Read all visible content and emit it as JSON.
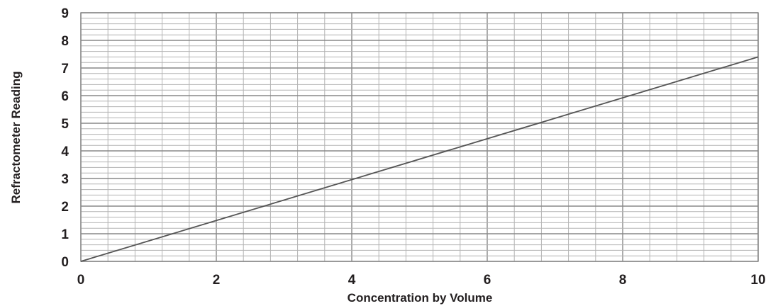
{
  "chart_data": {
    "type": "line",
    "title": "",
    "xlabel": "Concentration by Volume",
    "ylabel": "Refractometer Reading",
    "xlim": [
      0,
      10
    ],
    "ylim": [
      0,
      9
    ],
    "x_ticks": [
      "0",
      "2",
      "4",
      "6",
      "8",
      "10"
    ],
    "y_ticks": [
      "0",
      "1",
      "2",
      "3",
      "4",
      "5",
      "6",
      "7",
      "8",
      "9"
    ],
    "grid": {
      "visible": true,
      "x_minor_step": 0.4,
      "y_minor_step": 0.2
    },
    "series": [
      {
        "x": [
          0,
          10
        ],
        "y": [
          0,
          7.4
        ]
      }
    ],
    "colors": {
      "line": "#555555",
      "major_grid": "#888888",
      "minor_grid": "#b3b3b3",
      "text": "#231f20"
    }
  }
}
